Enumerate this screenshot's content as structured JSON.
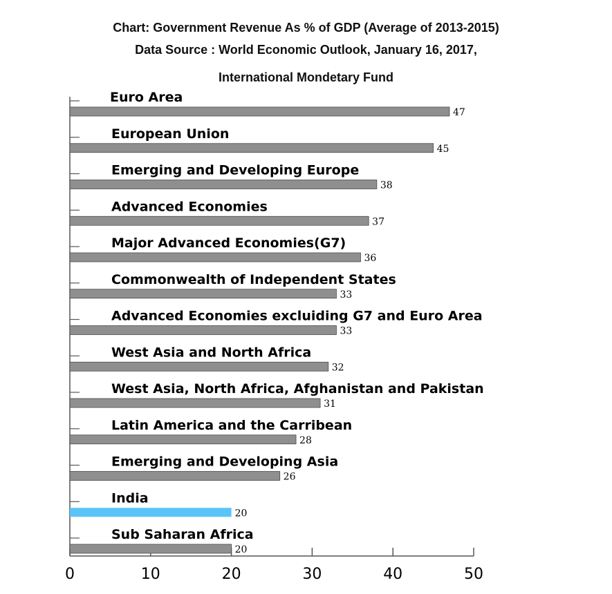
{
  "chart_data": {
    "type": "bar",
    "orientation": "horizontal",
    "title": "Chart: Government Revenue As % of GDP (Average of 2013-2015)",
    "subtitle": "Data Source : World Economic Outlook, January 16, 2017,",
    "subtitle2": "International Mondetary Fund",
    "categories": [
      "Euro Area",
      "European Union",
      "Emerging and Developing Europe",
      "Advanced Economies",
      "Major Advanced Economies(G7)",
      "Commonwealth of Independent States",
      "Advanced Economies excluiding G7 and Euro Area",
      "West Asia and North Africa",
      "West Asia, North Africa, Afghanistan and Pakistan",
      "Latin America and the Carribean",
      "Emerging and Developing Asia",
      "India",
      "Sub Saharan Africa"
    ],
    "values": [
      47,
      45,
      38,
      37,
      36,
      33,
      33,
      32,
      31,
      28,
      26,
      20,
      20
    ],
    "highlight": "India",
    "xlim": [
      0,
      50
    ],
    "xticks": [
      "0",
      "10",
      "20",
      "30",
      "40",
      "50"
    ],
    "xlabel": "",
    "ylabel": "",
    "colors": {
      "bar": "#8f8f8f",
      "highlight": "#5bc4f7",
      "bar_stroke": "#4a4a4a",
      "axis": "#555555"
    }
  }
}
